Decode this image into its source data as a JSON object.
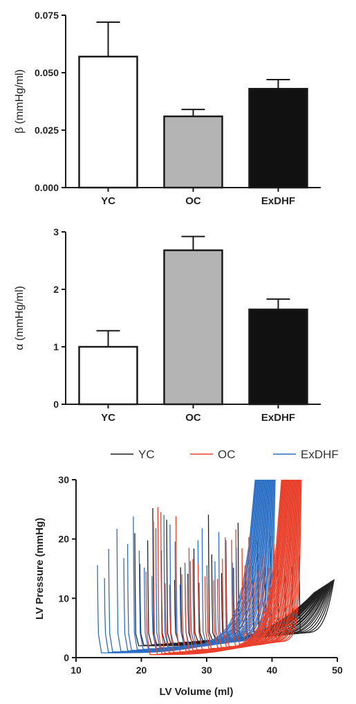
{
  "chart_data": [
    {
      "type": "bar",
      "categories": [
        "YC",
        "OC",
        "ExDHF"
      ],
      "values": [
        0.057,
        0.031,
        0.043
      ],
      "errors": [
        0.015,
        0.003,
        0.004
      ],
      "colors": [
        "#ffffff",
        "#b4b4b4",
        "#111111"
      ],
      "ylabel": "β (mmHg/ml)",
      "ylim": [
        0,
        0.075
      ],
      "yticks": [
        "0.000",
        "0.025",
        "0.050",
        "0.075"
      ]
    },
    {
      "type": "bar",
      "categories": [
        "YC",
        "OC",
        "ExDHF"
      ],
      "values": [
        1.0,
        2.68,
        1.65
      ],
      "errors": [
        0.28,
        0.24,
        0.18
      ],
      "colors": [
        "#ffffff",
        "#b4b4b4",
        "#111111"
      ],
      "ylabel": "α (mmHg/ml)",
      "ylim": [
        0,
        3
      ],
      "yticks": [
        "0",
        "1",
        "2",
        "3"
      ]
    },
    {
      "type": "line",
      "xlabel": "LV Volume (ml)",
      "ylabel": "LV Pressure (mmHg)",
      "xlim": [
        10,
        50
      ],
      "ylim": [
        0,
        30
      ],
      "xticks": [
        "10",
        "20",
        "30",
        "40",
        "50"
      ],
      "yticks": [
        "0",
        "10",
        "20",
        "30"
      ],
      "legend": [
        {
          "name": "YC",
          "color": "#222222"
        },
        {
          "name": "OC",
          "color": "#e8412c"
        },
        {
          "name": "ExDHF",
          "color": "#2b6fc4"
        }
      ],
      "series": [
        {
          "name": "YC",
          "color": "#222222",
          "v_start": 19,
          "v_end": 49.5,
          "count": 26
        },
        {
          "name": "OC",
          "color": "#e8412c",
          "v_start": 21,
          "v_end": 44.5,
          "count": 28
        },
        {
          "name": "ExDHF",
          "color": "#2b6fc4",
          "v_start": 13.5,
          "v_end": 40.5,
          "count": 26
        }
      ]
    }
  ]
}
